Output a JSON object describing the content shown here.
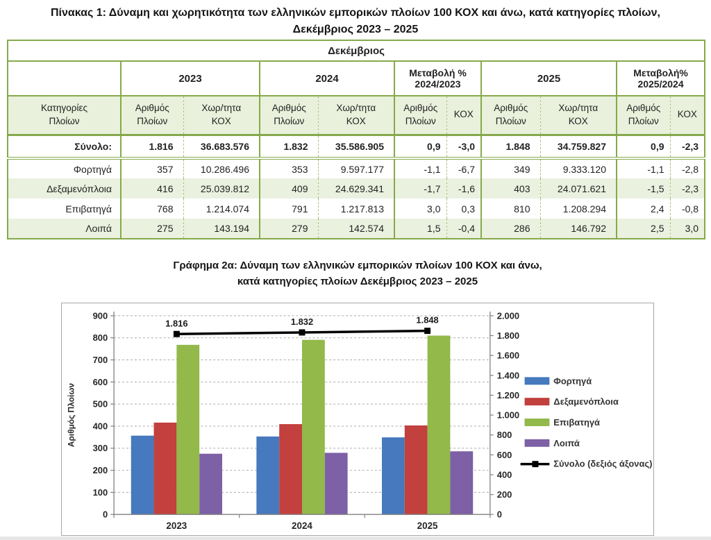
{
  "table": {
    "title_line1": "Πίνακας 1: Δύναμη και χωρητικότητα των ελληνικών εμπορικών πλοίων 100 ΚΟΧ και άνω, κατά κατηγορίες πλοίων,",
    "title_line2": "Δεκέμβριος 2023 – 2025",
    "month_header": "Δεκέμβριος",
    "corner_label": "Κατηγορίες\nΠλοίων",
    "groups": [
      "2023",
      "2024",
      "Μεταβολή %\n2024/2023",
      "2025",
      "Μεταβολή%\n2025/2024"
    ],
    "sub_headers": {
      "num": "Αριθμός\nΠλοίων",
      "kox": "Χωρ/τητα\nΚΟΧ",
      "kox_short": "ΚΟΧ"
    },
    "rows": [
      {
        "label": "Σύνολο:",
        "values": [
          "1.816",
          "36.683.576",
          "1.832",
          "35.586.905",
          "0,9",
          "-3,0",
          "1.848",
          "34.759.827",
          "0,9",
          "-2,3"
        ]
      },
      {
        "label": "Φορτηγά",
        "values": [
          "357",
          "10.286.496",
          "353",
          "9.597.177",
          "-1,1",
          "-6,7",
          "349",
          "9.333.120",
          "-1,1",
          "-2,8"
        ]
      },
      {
        "label": "Δεξαμενόπλοια",
        "values": [
          "416",
          "25.039.812",
          "409",
          "24.629.341",
          "-1,7",
          "-1,6",
          "403",
          "24.071.621",
          "-1,5",
          "-2,3"
        ]
      },
      {
        "label": "Επιβατηγά",
        "values": [
          "768",
          "1.214.074",
          "791",
          "1.217.813",
          "3,0",
          "0,3",
          "810",
          "1.208.294",
          "2,4",
          "-0,8"
        ]
      },
      {
        "label": "Λοιπά",
        "values": [
          "275",
          "143.194",
          "279",
          "142.574",
          "1,5",
          "-0,4",
          "286",
          "146.792",
          "2,5",
          "3,0"
        ]
      }
    ],
    "colors": {
      "border": "#86A94B",
      "header_fill": "#E9F0DB",
      "alt_row_fill": "#EAF1DF"
    }
  },
  "chart_title": {
    "line1": "Γράφημα 2α: Δύναμη των ελληνικών εμπορικών πλοίων 100 ΚΟΧ και άνω,",
    "line2": "κατά κατηγορίες πλοίων Δεκέμβριος 2023 – 2025"
  },
  "chart_data": {
    "type": "bar",
    "categories": [
      "2023",
      "2024",
      "2025"
    ],
    "series": [
      {
        "name": "Φορτηγά",
        "color": "#4679BD",
        "values": [
          357,
          353,
          349
        ]
      },
      {
        "name": "Δεξαμενόπλοια",
        "color": "#C2403D",
        "values": [
          416,
          409,
          403
        ]
      },
      {
        "name": "Επιβατηγά",
        "color": "#92B94A",
        "values": [
          768,
          791,
          810
        ]
      },
      {
        "name": "Λοιπά",
        "color": "#7D60A6",
        "values": [
          275,
          279,
          286
        ]
      }
    ],
    "line_series": {
      "name": "Σύνολο (δεξιός άξονας)",
      "color": "#000000",
      "axis": "right",
      "values": [
        1816,
        1832,
        1848
      ],
      "labels": [
        "1.816",
        "1.832",
        "1.848"
      ]
    },
    "ylabel": "Αριθμός Πλοίων",
    "left_axis": {
      "min": 0,
      "max": 900,
      "step": 100
    },
    "right_axis": {
      "min": 0,
      "max": 2000,
      "step": 200
    },
    "left_ticks": [
      "0",
      "100",
      "200",
      "300",
      "400",
      "500",
      "600",
      "700",
      "800",
      "900"
    ],
    "right_ticks": [
      "0",
      "200",
      "400",
      "600",
      "800",
      "1.000",
      "1.200",
      "1.400",
      "1.600",
      "1.800",
      "2.000"
    ],
    "grid": true,
    "legend_position": "right"
  }
}
